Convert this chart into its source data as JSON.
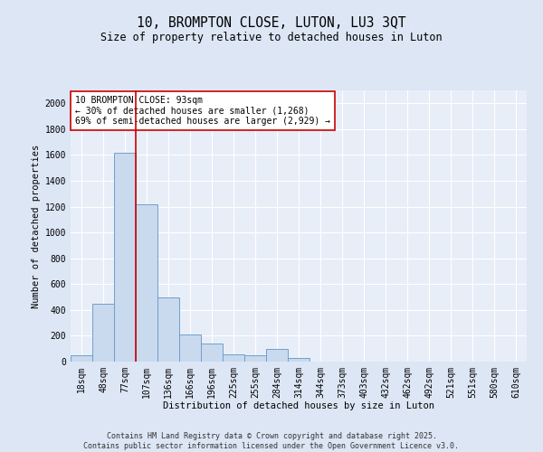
{
  "title": "10, BROMPTON CLOSE, LUTON, LU3 3QT",
  "subtitle": "Size of property relative to detached houses in Luton",
  "xlabel": "Distribution of detached houses by size in Luton",
  "ylabel": "Number of detached properties",
  "categories": [
    "18sqm",
    "48sqm",
    "77sqm",
    "107sqm",
    "136sqm",
    "166sqm",
    "196sqm",
    "225sqm",
    "255sqm",
    "284sqm",
    "314sqm",
    "344sqm",
    "373sqm",
    "403sqm",
    "432sqm",
    "462sqm",
    "492sqm",
    "521sqm",
    "551sqm",
    "580sqm",
    "610sqm"
  ],
  "values": [
    50,
    450,
    1620,
    1220,
    500,
    210,
    140,
    55,
    50,
    100,
    30,
    0,
    0,
    0,
    0,
    0,
    0,
    0,
    0,
    0,
    0
  ],
  "bar_color": "#c9d9ee",
  "bar_edge_color": "#6fa0cc",
  "vline_x_index": 2.5,
  "vline_color": "#cc0000",
  "annotation_text": "10 BROMPTON CLOSE: 93sqm\n← 30% of detached houses are smaller (1,268)\n69% of semi-detached houses are larger (2,929) →",
  "annotation_box_facecolor": "#ffffff",
  "annotation_box_edgecolor": "#cc0000",
  "ylim": [
    0,
    2100
  ],
  "yticks": [
    0,
    200,
    400,
    600,
    800,
    1000,
    1200,
    1400,
    1600,
    1800,
    2000
  ],
  "bg_color": "#dce6f5",
  "plot_bg_color": "#e8eef8",
  "grid_color": "#ffffff",
  "footer": "Contains HM Land Registry data © Crown copyright and database right 2025.\nContains public sector information licensed under the Open Government Licence v3.0.",
  "title_fontsize": 10.5,
  "subtitle_fontsize": 8.5,
  "axis_label_fontsize": 7.5,
  "tick_fontsize": 7,
  "annotation_fontsize": 7,
  "footer_fontsize": 6
}
